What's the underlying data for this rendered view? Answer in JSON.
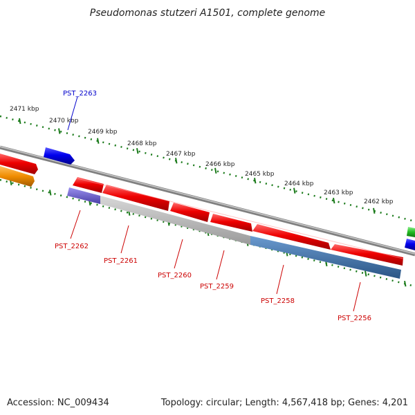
{
  "title": "Pseudomonas stutzeri A1501, complete genome",
  "accession": "Accession: NC_009434",
  "summary": "Topology: circular; Length: 4,567,418 bp; Genes: 4,201",
  "kbp_labels": [
    "2471 kbp",
    "2470 kbp",
    "2469 kbp",
    "2468 kbp",
    "2467 kbp",
    "2466 kbp",
    "2465 kbp",
    "2464 kbp",
    "2463 kbp",
    "2462 kbp"
  ],
  "colors": {
    "forward_gene": "#0000ee",
    "reverse_gene": "#ee0000",
    "ruler_ticks": "#1a7a1a",
    "backbone": "#808080",
    "gc_low": "#6a5acd",
    "gc_mid": "#b5b5b5",
    "gc_high": "#3b6fa6",
    "orange_gene": "#f08c00",
    "green_gene": "#22bb22"
  },
  "genes_forward": [
    {
      "label": "PST_2263"
    }
  ],
  "genes_reverse": [
    {
      "label": "PST_2262"
    },
    {
      "label": "PST_2261"
    },
    {
      "label": "PST_2260"
    },
    {
      "label": "PST_2259"
    },
    {
      "label": "PST_2258"
    },
    {
      "label": "PST_2256"
    }
  ]
}
